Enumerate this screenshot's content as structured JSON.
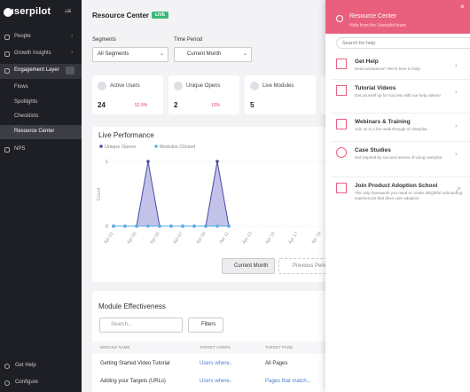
{
  "sidebar": {
    "logo": "userpilot",
    "nav": [
      "People",
      "Growth Insights",
      "Engagement Layer",
      "Flows",
      "Spotlights",
      "Checklists",
      "Resource Center",
      "NPS"
    ],
    "bottom": [
      "Get Help",
      "Configure"
    ]
  },
  "header": {
    "title": "Resource Center",
    "badge": "LIVE"
  },
  "filters": [
    {
      "label": "Segments",
      "value": "All Segments"
    },
    {
      "label": "Time Period",
      "value": "Current Month"
    }
  ],
  "stats": [
    {
      "label": "Active Users",
      "value": 24,
      "change": "52.9%"
    },
    {
      "label": "Unique Opens",
      "value": 2,
      "change": "10%"
    },
    {
      "label": "Live Modules",
      "value": 5
    }
  ],
  "chart_data": {
    "type": "line",
    "title": "Live Performance",
    "y_label": "Count",
    "x": [
      "Apr 01",
      null,
      "Apr 03",
      null,
      "Apr 05",
      null,
      "Apr 07",
      null,
      "Apr 09",
      null,
      "Apr 11",
      null,
      "Apr 13",
      null,
      "Apr 15",
      null,
      "Apr 17",
      null,
      "Apr 19"
    ],
    "series": [
      {
        "name": "Unique Opens",
        "color": "#4b4ba6",
        "fill": "#b9b9e6",
        "values": [
          0,
          0,
          0,
          1,
          0,
          0,
          0,
          0,
          0,
          1,
          0,
          null,
          null,
          null,
          null,
          null,
          null,
          null,
          null
        ]
      },
      {
        "name": "Modules Clicked",
        "color": "#58aee8",
        "values": [
          0,
          0,
          0,
          0,
          0,
          0,
          0,
          0,
          0,
          0,
          0,
          null,
          null,
          null,
          null,
          null,
          null,
          null,
          null
        ]
      }
    ],
    "ylim": [
      0,
      1
    ],
    "yticks": [
      0,
      1
    ],
    "grid": true
  },
  "chart_buttons": [
    "Current Month",
    "Previous Period"
  ],
  "module_table": {
    "title": "Module Effectiveness",
    "search": "Search...",
    "filter": "Filters",
    "columns": [
      "MODULE NAME",
      "TARGET USERS",
      "TARGET PAGE"
    ],
    "rows": [
      [
        "Getting Started Video Tutorial",
        "Users where..",
        "All Pages"
      ],
      [
        "Adding your Targets (URLs)",
        "Users where..",
        "Pages that match..."
      ]
    ]
  },
  "panel": {
    "title": "Resource Center",
    "subtitle": "Help from the Userpilot team",
    "search": "Search for help",
    "items": [
      {
        "title": "Get Help",
        "desc": "Need assistance? We're here to help."
      },
      {
        "title": "Tutorial Videos",
        "desc": "Get yourself up for success with our help videos!"
      },
      {
        "title": "Webinars & Training",
        "desc": "Join us in a live walk through of Userpilot."
      },
      {
        "title": "Case Studies",
        "desc": "Get inspired by success stories of using Userpilot"
      },
      {
        "title": "Join Product Adoption School",
        "desc": "The only framework you need to create delightful onboarding experiences that drive user adoption."
      }
    ]
  }
}
